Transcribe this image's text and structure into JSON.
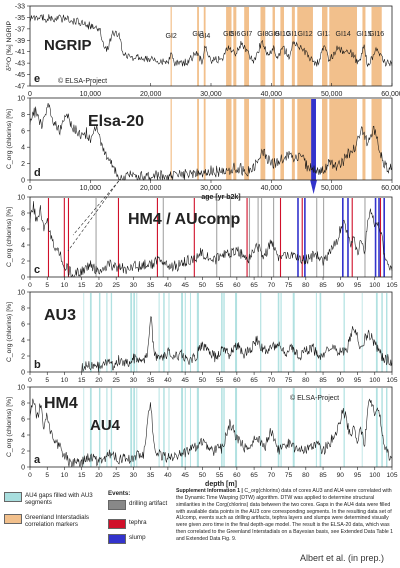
{
  "chart_data": [
    {
      "panel_id": "e",
      "type": "line",
      "title": "NGRIP",
      "ylabel": "δ¹⁸O [‰] NGRIP",
      "xlim": [
        0,
        60000
      ],
      "ylim": [
        -47,
        -33
      ],
      "yticks": [
        -33,
        -35,
        -37,
        -39,
        -41,
        -43,
        -45,
        -47
      ],
      "xticks": [
        0,
        10000,
        20000,
        30000,
        40000,
        50000,
        60000
      ],
      "xtick_labels": [
        "0",
        "10,000",
        "20,000",
        "30,000",
        "40,000",
        "50,000",
        "60,000"
      ],
      "watermark": "© ELSA-Project",
      "greenland_interstadials": [
        {
          "label": "GI2",
          "start": 23300,
          "end": 23500
        },
        {
          "label": "GI3",
          "start": 27700,
          "end": 28000
        },
        {
          "label": "GI4",
          "start": 28800,
          "end": 29100
        },
        {
          "label": "GI5",
          "start": 32500,
          "end": 33400
        },
        {
          "label": "GI6",
          "start": 33700,
          "end": 34200
        },
        {
          "label": "GI7",
          "start": 35500,
          "end": 36300
        },
        {
          "label": "GI8",
          "start": 38200,
          "end": 39000
        },
        {
          "label": "GI9",
          "start": 40200,
          "end": 40600
        },
        {
          "label": "GI10",
          "start": 41500,
          "end": 42100
        },
        {
          "label": "GI11",
          "start": 43400,
          "end": 43900
        },
        {
          "label": "GI12",
          "start": 44300,
          "end": 46900
        },
        {
          "label": "GI13",
          "start": 48400,
          "end": 49300
        },
        {
          "label": "GI14",
          "start": 49600,
          "end": 54200
        },
        {
          "label": "GI15",
          "start": 55100,
          "end": 55600
        },
        {
          "label": "GI16",
          "start": 56600,
          "end": 58300
        }
      ],
      "series": [
        {
          "x": [
            0,
            2000,
            4000,
            6000,
            8000,
            10000,
            11700,
            12000,
            12900,
            13500,
            14700,
            15500,
            17000,
            19000,
            21000,
            23000,
            23400,
            24000,
            26000,
            27800,
            28500,
            29000,
            30000,
            32000,
            33000,
            34000,
            35000,
            36000,
            37000,
            38500,
            39500,
            40400,
            41000,
            41800,
            43000,
            43600,
            44500,
            46000,
            47500,
            48800,
            49500,
            51000,
            53000,
            54500,
            55300,
            56000,
            57500,
            59000,
            60000
          ],
          "y": [
            -35.0,
            -35.1,
            -35.2,
            -35.3,
            -35.8,
            -36.5,
            -37.0,
            -39.5,
            -40.5,
            -38.0,
            -37.8,
            -41.5,
            -42.0,
            -42.2,
            -42.5,
            -43.0,
            -40.5,
            -43.0,
            -42.8,
            -41.0,
            -43.0,
            -40.0,
            -42.5,
            -42.0,
            -40.0,
            -41.5,
            -39.5,
            -41.0,
            -43.0,
            -39.0,
            -42.0,
            -40.0,
            -42.5,
            -40.0,
            -42.0,
            -39.5,
            -40.0,
            -41.5,
            -43.5,
            -40.0,
            -42.5,
            -40.5,
            -41.0,
            -43.0,
            -40.0,
            -43.5,
            -40.5,
            -43.0,
            -43.0
          ]
        }
      ]
    },
    {
      "panel_id": "d",
      "type": "line",
      "title": "Elsa-20",
      "ylabel": "C_org (chlorins) [%]",
      "xlabel": "age [yr b2k]",
      "xlim": [
        0,
        60000
      ],
      "ylim": [
        0,
        10
      ],
      "yticks": [
        0,
        2,
        4,
        6,
        8,
        10
      ],
      "xticks": [
        0,
        10000,
        20000,
        30000,
        40000,
        50000,
        60000
      ],
      "xtick_labels": [
        "0",
        "10,000",
        "20,000",
        "30,000",
        "40,000",
        "50,000",
        "60,000"
      ],
      "slump_age": [
        46600,
        47400
      ],
      "series": [
        {
          "x": [
            0,
            1000,
            2000,
            3000,
            4000,
            5000,
            6000,
            7000,
            8000,
            9000,
            10000,
            11000,
            12000,
            13000,
            14000,
            15000,
            17000,
            20000,
            22000,
            24000,
            26000,
            28000,
            30000,
            32000,
            34000,
            36000,
            37500,
            38500,
            40000,
            41500,
            43000,
            44000,
            45000,
            46000,
            48000,
            49500,
            51000,
            52500,
            54000,
            55000,
            56000,
            57000,
            58000,
            59000,
            60000
          ],
          "y": [
            7.5,
            8.5,
            6.5,
            9.0,
            7.0,
            6.0,
            8.0,
            6.5,
            5.5,
            6.0,
            5.0,
            6.5,
            4.0,
            2.5,
            1.2,
            0.4,
            0.5,
            0.4,
            0.6,
            0.5,
            0.8,
            0.6,
            1.2,
            0.8,
            1.5,
            1.0,
            1.8,
            3.5,
            2.0,
            2.2,
            3.5,
            2.5,
            3.0,
            1.5,
            1.0,
            2.0,
            1.5,
            3.0,
            4.0,
            6.0,
            4.5,
            6.5,
            3.5,
            1.5,
            1.8
          ]
        }
      ]
    },
    {
      "panel_id": "c",
      "type": "line",
      "title": "HM4 / AUcomp",
      "ylabel": "C_org (chlorins) [%]",
      "xlim": [
        0,
        105
      ],
      "ylim": [
        0,
        10
      ],
      "yticks": [
        0,
        2,
        4,
        6,
        8,
        10
      ],
      "xticks": [
        0,
        5,
        10,
        15,
        20,
        25,
        30,
        35,
        40,
        45,
        50,
        55,
        60,
        65,
        70,
        75,
        80,
        85,
        90,
        95,
        100,
        105
      ],
      "drilling_artifact_depths": [
        19,
        38.5,
        54,
        58,
        63.5,
        66,
        67,
        70.5,
        83,
        85,
        97
      ],
      "tephra_depths": [
        5.2,
        9.8,
        11,
        25.5,
        36.8,
        47.5,
        62.8,
        72.5,
        78.8,
        93.3,
        101.5
      ],
      "slump_depths": [
        77.5,
        79.5,
        90.5,
        92,
        100,
        101,
        102.5
      ],
      "series": [
        {
          "x": [
            0,
            1,
            2,
            3,
            4,
            5,
            6,
            7,
            8,
            9,
            10,
            11,
            12,
            13,
            15,
            17,
            20,
            23,
            26,
            30,
            33,
            36,
            38,
            40,
            43,
            46,
            50,
            53,
            56,
            60,
            63,
            66,
            68,
            70,
            72,
            75,
            77,
            80,
            83,
            85,
            87,
            89,
            90,
            91,
            92,
            93,
            94,
            95,
            96,
            97,
            98,
            99,
            100,
            101,
            102,
            103,
            104,
            105
          ],
          "y": [
            7.5,
            9.0,
            6.5,
            8.5,
            5.5,
            7.0,
            5.0,
            4.0,
            3.5,
            2.5,
            1.5,
            1.0,
            0.5,
            0.5,
            0.6,
            1.5,
            0.8,
            1.5,
            1.0,
            1.2,
            1.5,
            1.8,
            2.5,
            1.2,
            1.5,
            2.0,
            3.0,
            2.0,
            2.5,
            3.5,
            2.0,
            3.8,
            2.5,
            4.5,
            2.0,
            3.0,
            2.5,
            2.0,
            3.0,
            2.0,
            3.0,
            4.5,
            6.0,
            7.0,
            5.5,
            4.0,
            5.0,
            3.0,
            5.0,
            2.5,
            7.5,
            8.5,
            6.0,
            7.0,
            5.0,
            2.5,
            1.5,
            1.0
          ]
        }
      ]
    },
    {
      "panel_id": "b",
      "type": "line",
      "title": "AU3",
      "ylabel": "C_org (chlorins) [%]",
      "xlim": [
        0,
        105
      ],
      "ylim": [
        0,
        10
      ],
      "yticks": [
        0,
        2,
        4,
        6,
        8,
        10
      ],
      "xticks": [
        0,
        5,
        10,
        15,
        20,
        25,
        30,
        35,
        40,
        45,
        50,
        55,
        60,
        65,
        70,
        75,
        80,
        85,
        90,
        95,
        100,
        105
      ],
      "series": [
        {
          "x": [
            15,
            17,
            19,
            20,
            22,
            24,
            26,
            28,
            30,
            32,
            34,
            35,
            36,
            38,
            40,
            42,
            44,
            46,
            48,
            50,
            52,
            54,
            56,
            58,
            60,
            62,
            64,
            66,
            68,
            70,
            72,
            74,
            76,
            78,
            80,
            82,
            84,
            86,
            88,
            90,
            92,
            94,
            96,
            98,
            100,
            102,
            104,
            105
          ],
          "y": [
            0.5,
            0.8,
            1.2,
            0.6,
            1.0,
            0.8,
            1.5,
            1.0,
            1.8,
            1.2,
            2.0,
            7.5,
            2.0,
            1.5,
            2.5,
            1.8,
            2.5,
            1.5,
            2.0,
            3.5,
            2.5,
            1.8,
            3.0,
            2.0,
            3.5,
            2.2,
            3.0,
            4.0,
            2.5,
            3.0,
            3.5,
            2.5,
            3.0,
            2.0,
            2.5,
            3.0,
            2.0,
            2.5,
            3.0,
            2.5,
            3.0,
            5.5,
            3.0,
            5.0,
            3.5,
            2.0,
            1.5,
            1.2
          ]
        }
      ]
    },
    {
      "panel_id": "a",
      "type": "line",
      "title": "HM4",
      "subtitle": "AU4",
      "ylabel": "C_org (chlorins) [%]",
      "xlabel": "depth [m]",
      "xlim": [
        0,
        105
      ],
      "ylim": [
        0,
        10
      ],
      "yticks": [
        0,
        2,
        4,
        6,
        8,
        10
      ],
      "xticks": [
        0,
        5,
        10,
        15,
        20,
        25,
        30,
        35,
        40,
        45,
        50,
        55,
        60,
        65,
        70,
        75,
        80,
        85,
        90,
        95,
        100,
        105
      ],
      "watermark": "© ELSA-Project",
      "series": [
        {
          "x": [
            0,
            1,
            2,
            3,
            4,
            5,
            6,
            7,
            8,
            9,
            10,
            11,
            12,
            13,
            15,
            17,
            20,
            23,
            26,
            30,
            33,
            34.5,
            35,
            36,
            38,
            40,
            43,
            46,
            50,
            53,
            56,
            58,
            60,
            63,
            66,
            68,
            70,
            72,
            75,
            77,
            80,
            83,
            85,
            87,
            89,
            90,
            91,
            92,
            93,
            94,
            95,
            96,
            97,
            98,
            99,
            100,
            101,
            102,
            103,
            104,
            105
          ],
          "y": [
            7.0,
            8.5,
            6.0,
            8.0,
            5.0,
            6.5,
            4.5,
            3.5,
            3.0,
            2.0,
            1.5,
            1.0,
            0.5,
            0.5,
            0.6,
            1.2,
            0.8,
            1.5,
            1.0,
            1.2,
            1.5,
            7.0,
            8.0,
            2.5,
            1.5,
            1.2,
            1.5,
            2.0,
            3.0,
            2.0,
            2.5,
            5.5,
            3.5,
            2.0,
            3.8,
            2.5,
            4.5,
            2.0,
            3.0,
            2.5,
            2.0,
            3.0,
            2.0,
            3.0,
            4.5,
            6.0,
            7.0,
            5.5,
            4.0,
            5.0,
            3.0,
            5.0,
            2.5,
            7.5,
            8.5,
            6.0,
            7.0,
            5.0,
            2.5,
            1.5,
            1.0
          ]
        }
      ]
    }
  ],
  "legend": {
    "au4_gaps": "AU4 gaps filled with AU3 segments",
    "gi_markers": "Greenland Interstadials correlation markers",
    "events_title": "Events:",
    "drilling_artifact": "drilling artifact",
    "tephra": "tephra",
    "slump": "slump"
  },
  "colors": {
    "au4_gaps": "#a8dede",
    "gi_markers": "#f2c08c",
    "drilling_artifact": "#888888",
    "tephra": "#d0102a",
    "slump": "#3333cc"
  },
  "caption": {
    "bold": "Supplement Information 1 |",
    "text": "C_org(chlorins) data of cores AU3 and AU4 were correlated with the Dynamic Time Warping (DTW) algorithm. DTW was applied to determine structural similarities in the Corg(chlorins) data between the two cores. Gaps in the AU4 data were filled with available data points in the AU3 core corresponding segments. In the resulting data set of AUcomp, events such as drilling artifacts, tephra layers and slumps were determined visually were given zero time in the final depth-age model. The result is the ELSA-20 data, which was then correlated to the Greenland Interstadials on a Bayesian basis, see Extended Data Table 1 and Extended Data Fig. 9."
  },
  "credit": "Albert et al. (in prep.)"
}
